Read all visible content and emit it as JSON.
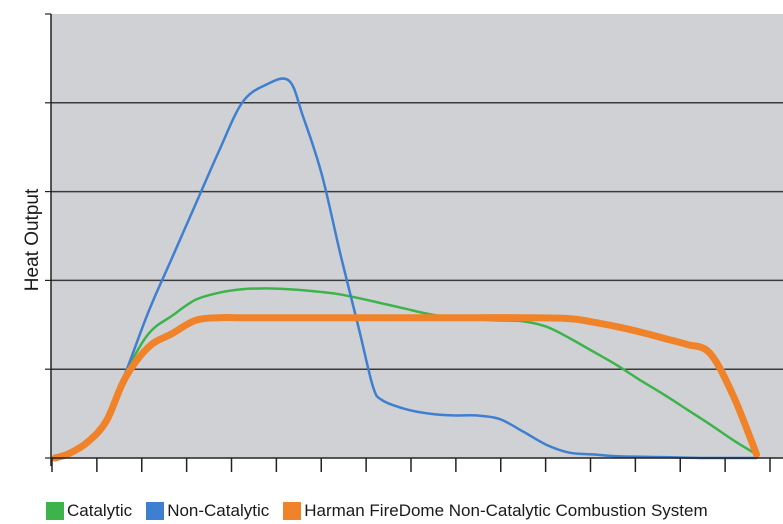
{
  "chart_data": {
    "type": "line",
    "ylabel": "Heat Output",
    "xlabel": "",
    "xlim": [
      0,
      16
    ],
    "ylim": [
      0,
      5
    ],
    "x_ticks": 16,
    "grid": "horizontal",
    "legend_position": "bottom",
    "series": [
      {
        "name": "Catalytic",
        "color": "#3cb44b",
        "width": 2.5,
        "points": [
          [
            0,
            0
          ],
          [
            0.3,
            0.05
          ],
          [
            0.7,
            0.2
          ],
          [
            1.1,
            0.45
          ],
          [
            1.5,
            0.95
          ],
          [
            2.0,
            1.4
          ],
          [
            2.5,
            1.6
          ],
          [
            3.0,
            1.78
          ],
          [
            3.5,
            1.86
          ],
          [
            4.0,
            1.9
          ],
          [
            4.5,
            1.91
          ],
          [
            5.0,
            1.9
          ],
          [
            5.5,
            1.88
          ],
          [
            6.0,
            1.85
          ],
          [
            6.5,
            1.8
          ],
          [
            7.0,
            1.74
          ],
          [
            7.5,
            1.68
          ],
          [
            8.0,
            1.62
          ],
          [
            8.5,
            1.58
          ],
          [
            9.0,
            1.56
          ],
          [
            9.5,
            1.55
          ],
          [
            10.0,
            1.54
          ],
          [
            10.5,
            1.48
          ],
          [
            11.0,
            1.35
          ],
          [
            11.5,
            1.2
          ],
          [
            12.0,
            1.05
          ],
          [
            12.5,
            0.88
          ],
          [
            13.0,
            0.72
          ],
          [
            13.5,
            0.55
          ],
          [
            14.0,
            0.38
          ],
          [
            14.5,
            0.2
          ],
          [
            15.0,
            0.04
          ]
        ]
      },
      {
        "name": "Non-Catalytic",
        "color": "#3f7fd0",
        "width": 2.5,
        "points": [
          [
            0,
            0
          ],
          [
            0.3,
            0.05
          ],
          [
            0.7,
            0.2
          ],
          [
            1.1,
            0.45
          ],
          [
            1.5,
            0.95
          ],
          [
            2.0,
            1.65
          ],
          [
            2.5,
            2.25
          ],
          [
            3.0,
            2.85
          ],
          [
            3.5,
            3.45
          ],
          [
            4.0,
            4.0
          ],
          [
            4.5,
            4.2
          ],
          [
            5.0,
            4.25
          ],
          [
            5.3,
            3.85
          ],
          [
            5.7,
            3.2
          ],
          [
            6.1,
            2.3
          ],
          [
            6.5,
            1.45
          ],
          [
            6.8,
            0.8
          ],
          [
            7.0,
            0.65
          ],
          [
            7.5,
            0.55
          ],
          [
            8.0,
            0.5
          ],
          [
            8.5,
            0.48
          ],
          [
            9.0,
            0.48
          ],
          [
            9.5,
            0.44
          ],
          [
            10.0,
            0.3
          ],
          [
            10.5,
            0.15
          ],
          [
            11.0,
            0.06
          ],
          [
            11.5,
            0.04
          ],
          [
            12.0,
            0.02
          ],
          [
            13.0,
            0.01
          ],
          [
            14.0,
            0
          ],
          [
            15.0,
            0
          ]
        ]
      },
      {
        "name": "Harman FireDome Non-Catalytic Combustion System",
        "color": "#f0832a",
        "width": 7,
        "points": [
          [
            0,
            0
          ],
          [
            0.3,
            0.05
          ],
          [
            0.7,
            0.18
          ],
          [
            1.1,
            0.42
          ],
          [
            1.5,
            0.9
          ],
          [
            2.0,
            1.25
          ],
          [
            2.5,
            1.4
          ],
          [
            3.0,
            1.55
          ],
          [
            3.5,
            1.58
          ],
          [
            4.0,
            1.58
          ],
          [
            5.0,
            1.58
          ],
          [
            6.0,
            1.58
          ],
          [
            7.0,
            1.58
          ],
          [
            8.0,
            1.58
          ],
          [
            9.0,
            1.58
          ],
          [
            10.0,
            1.58
          ],
          [
            11.0,
            1.57
          ],
          [
            11.5,
            1.53
          ],
          [
            12.0,
            1.48
          ],
          [
            12.5,
            1.42
          ],
          [
            13.0,
            1.35
          ],
          [
            13.5,
            1.28
          ],
          [
            14.0,
            1.18
          ],
          [
            14.5,
            0.7
          ],
          [
            15.0,
            0.04
          ]
        ]
      }
    ]
  }
}
